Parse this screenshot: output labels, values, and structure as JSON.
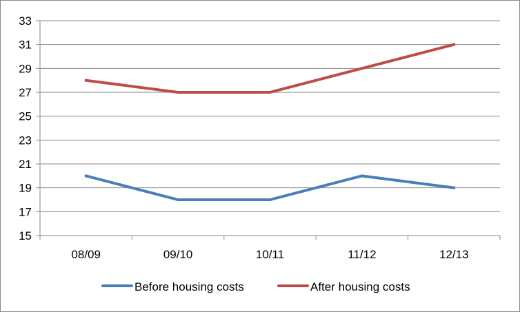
{
  "chart_data": {
    "type": "line",
    "title": "",
    "xlabel": "",
    "ylabel": "",
    "categories": [
      "08/09",
      "09/10",
      "10/11",
      "11/12",
      "12/13"
    ],
    "ylim": [
      15,
      33
    ],
    "yticks": [
      15,
      17,
      19,
      21,
      23,
      25,
      27,
      29,
      31,
      33
    ],
    "grid": true,
    "legend_position": "bottom",
    "series": [
      {
        "name": "Before housing costs",
        "color": "#4a7ebb",
        "values": [
          20,
          18,
          18,
          20,
          19
        ]
      },
      {
        "name": "After housing costs",
        "color": "#be4b48",
        "values": [
          28,
          27,
          27,
          29,
          31
        ]
      }
    ]
  }
}
